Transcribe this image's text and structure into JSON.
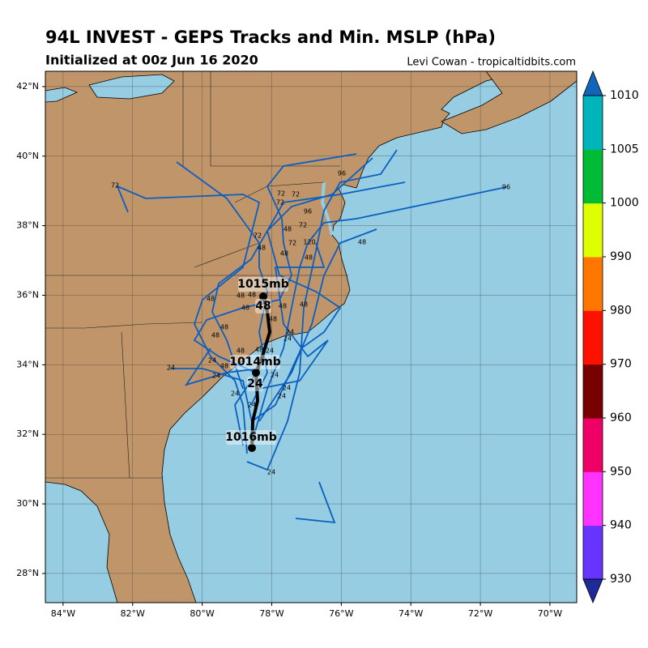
{
  "header": {
    "title": "94L INVEST - GEPS Tracks and Min. MSLP (hPa)",
    "subtitle": "Initialized at 00z Jun 16 2020",
    "credit": "Levi Cowan - tropicaltidbits.com"
  },
  "map": {
    "lonlim": [
      -84.51,
      -69.23
    ],
    "latlim": [
      27.16,
      42.44
    ],
    "lon_ticks": [
      {
        "value": -84,
        "label": "84°W"
      },
      {
        "value": -82,
        "label": "82°W"
      },
      {
        "value": -80,
        "label": "80°W"
      },
      {
        "value": -78,
        "label": "78°W"
      },
      {
        "value": -76,
        "label": "76°W"
      },
      {
        "value": -74,
        "label": "74°W"
      },
      {
        "value": -72,
        "label": "72°W"
      },
      {
        "value": -70,
        "label": "70°W"
      }
    ],
    "lat_ticks": [
      {
        "value": 28,
        "label": "28°N"
      },
      {
        "value": 30,
        "label": "30°N"
      },
      {
        "value": 32,
        "label": "32°N"
      },
      {
        "value": 34,
        "label": "34°N"
      },
      {
        "value": 36,
        "label": "36°N"
      },
      {
        "value": 38,
        "label": "38°N"
      },
      {
        "value": 40,
        "label": "40°N"
      },
      {
        "value": 42,
        "label": "42°N"
      }
    ],
    "mean_track_labels": [
      "1016mb",
      24,
      "1014mb",
      48,
      "1015mb"
    ],
    "member_hour_labels": [
      72,
      72,
      72,
      72,
      96,
      96,
      96,
      72,
      48,
      72,
      72,
      120,
      48,
      48,
      48,
      48,
      48,
      48,
      48,
      48,
      48,
      48,
      48,
      48,
      48,
      24,
      24,
      48,
      48,
      24,
      24,
      48,
      24,
      24,
      24,
      24,
      24,
      24,
      24,
      24
    ]
  },
  "colorbar": {
    "ticks": [
      930,
      940,
      950,
      960,
      970,
      980,
      990,
      1000,
      1005,
      1010
    ],
    "colors": [
      "#6633ff",
      "#ff33ff",
      "#ee0066",
      "#770000",
      "#ff1100",
      "#ff7700",
      "#ddff00",
      "#00bb33",
      "#00b4bb"
    ],
    "under_color": "#1f2a99",
    "over_color": "#1166bb"
  }
}
